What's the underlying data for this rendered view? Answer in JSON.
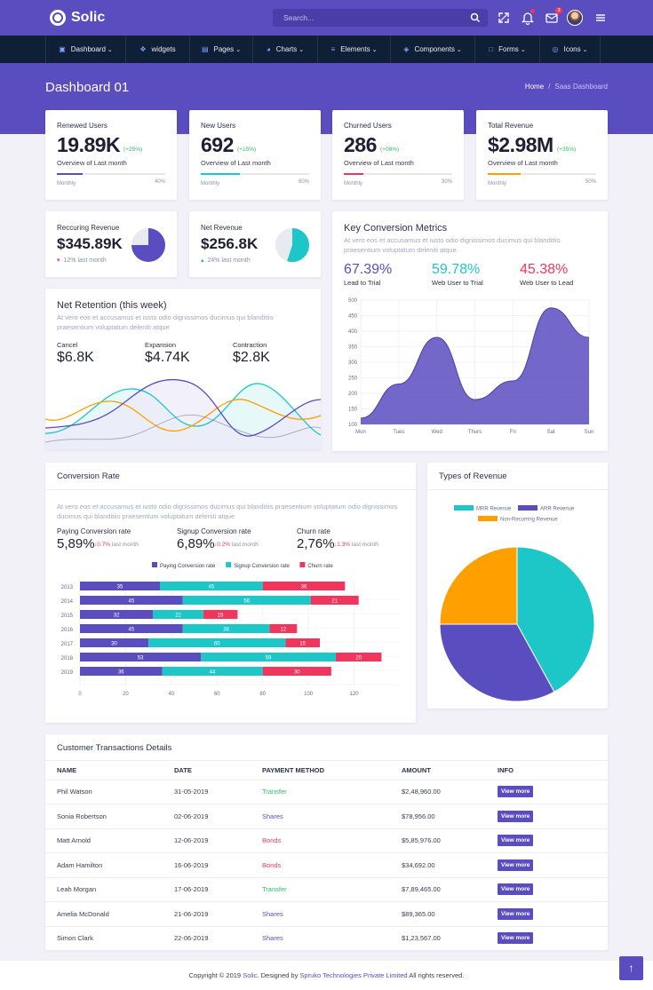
{
  "app": {
    "name": "Solic"
  },
  "search": {
    "placeholder": "Search..."
  },
  "header": {
    "notification_count": "3"
  },
  "nav": [
    {
      "label": "Dashboard",
      "icon": "monitor-icon",
      "has_caret": true
    },
    {
      "label": "widgets",
      "icon": "cube-icon",
      "has_caret": false
    },
    {
      "label": "Pages",
      "icon": "database-icon",
      "has_caret": true
    },
    {
      "label": "Charts",
      "icon": "pie-chart-icon",
      "has_caret": true
    },
    {
      "label": "Elements",
      "icon": "layers-icon",
      "has_caret": true
    },
    {
      "label": "Components",
      "icon": "package-icon",
      "has_caret": true
    },
    {
      "label": "Forms",
      "icon": "file-icon",
      "has_caret": true
    },
    {
      "label": "Icons",
      "icon": "target-icon",
      "has_caret": true
    }
  ],
  "page": {
    "title": "Dashboard 01",
    "breadcrumb_home": "Home",
    "breadcrumb_current": "Saas Dashboard"
  },
  "stats": [
    {
      "label": "Renewed Users",
      "value": "19.89K",
      "change": "(+25%)",
      "sub": "Overview of Last month",
      "period": "Monthly",
      "progress_label": "40%",
      "progress": 0.4,
      "color": "#5a4dbf"
    },
    {
      "label": "New Users",
      "value": "692",
      "change": "(+15%)",
      "sub": "Overview of Last month",
      "period": "Monthly",
      "progress_label": "60%",
      "progress": 0.6,
      "color": "#1ec7c7"
    },
    {
      "label": "Churned Users",
      "value": "286",
      "change": "(+08%)",
      "sub": "Overview of Last month",
      "period": "Monthly",
      "progress_label": "30%",
      "progress": 0.3,
      "color": "#f0365d"
    },
    {
      "label": "Total Revenue",
      "value": "$2.98M",
      "change": "(+35%)",
      "sub": "Overview of Last month",
      "period": "Monthly",
      "progress_label": "50%",
      "progress": 0.5,
      "color": "#ff9f00"
    }
  ],
  "mini": [
    {
      "label": "Reccuring Revenue",
      "value": "$345.89K",
      "sub": "12% last month",
      "trend": "down",
      "slice": 0.75,
      "color": "#5a4dbf"
    },
    {
      "label": "Net Revenue",
      "value": "$256.8K",
      "sub": "24% last month",
      "trend": "up",
      "slice": 0.55,
      "color": "#1ec7c7"
    }
  ],
  "key_metrics": {
    "title": "Key Conversion Metrics",
    "desc": "At vero eos et accusamus et iusto odio dignissimos ducimus qui blanditiis praesentium voluptatum deleniti atque",
    "metrics": [
      {
        "value": "67.39%",
        "label": "Lead to Trial",
        "color": "#5a4dbf"
      },
      {
        "value": "59.78%",
        "label": "Web User to Trial",
        "color": "#1ec7c7"
      },
      {
        "value": "45.38%",
        "label": "Web User to Lead",
        "color": "#f0365d"
      }
    ]
  },
  "retention": {
    "title": "Net Retention (this week)",
    "desc": "At vero eos et accusamus et iusto odio dignissimos ducimus qui blanditiis praesentium voluptatum deleniti atque",
    "items": [
      {
        "label": "Cancel",
        "value": "$6.8K"
      },
      {
        "label": "Expansion",
        "value": "$4.74K"
      },
      {
        "label": "Contraction",
        "value": "$2.8K"
      }
    ]
  },
  "conversion": {
    "title": "Conversion Rate",
    "desc": "At vero eos et accusamus et iusto odio dignissimos ducimus qui blanditiis praesentium voluptatum odio dignissimos ducimus qui blanditiis praesentium voluptatum deleniti atque",
    "rates": [
      {
        "label": "Paying Conversion rate",
        "value": "5,89%",
        "change": "0.7%",
        "suffix": "last month"
      },
      {
        "label": "Signup Conversion rate",
        "value": "6,89%",
        "change": "0.2%",
        "suffix": "last month"
      },
      {
        "label": "Churn rate",
        "value": "2,76%",
        "change": "1.3%",
        "suffix": "last month"
      }
    ]
  },
  "revenue_types": {
    "title": "Types of Revenue"
  },
  "transactions": {
    "title": "Customer Transactions Details",
    "columns": [
      "NAME",
      "DATE",
      "PAYMENT METHOD",
      "AMOUNT",
      "INFO"
    ],
    "button_label": "View more",
    "rows": [
      {
        "name": "Phil Watson",
        "date": "31-05-2019",
        "method": "Transfer",
        "amount": "$2,48,960.00",
        "method_color": "#2dbb6a"
      },
      {
        "name": "Sonia Robertson",
        "date": "02-06-2019",
        "method": "Shares",
        "amount": "$78,956.00",
        "method_color": "#5a4dbf"
      },
      {
        "name": "Matt Arnold",
        "date": "12-06-2019",
        "method": "Bonds",
        "amount": "$5,85,976.00",
        "method_color": "#f0365d"
      },
      {
        "name": "Adam Hamilton",
        "date": "16-06-2019",
        "method": "Bonds",
        "amount": "$34,692.00",
        "method_color": "#f0365d"
      },
      {
        "name": "Leah Morgan",
        "date": "17-06-2019",
        "method": "Transfer",
        "amount": "$7,89,465.00",
        "method_color": "#2dbb6a"
      },
      {
        "name": "Amelia McDonald",
        "date": "21-06-2019",
        "method": "Shares",
        "amount": "$89,365.00",
        "method_color": "#5a4dbf"
      },
      {
        "name": "Simon Clark",
        "date": "22-06-2019",
        "method": "Shares",
        "amount": "$1,23,567.00",
        "method_color": "#5a4dbf"
      }
    ]
  },
  "footer": {
    "prefix": "Copyright © 2019 ",
    "brand": "Solic",
    "middle": ". Designed by ",
    "company": "Spruko Technologies Private Limited",
    "suffix": " All rights reserved."
  },
  "chart_data": [
    {
      "type": "area",
      "categories": [
        "Mon",
        "Tues",
        "Wed",
        "Thurs",
        "Fri",
        "Sat",
        "Sun"
      ],
      "values": [
        120,
        230,
        380,
        180,
        240,
        475,
        380
      ],
      "ylim": [
        100,
        500
      ],
      "yticks": [
        100,
        150,
        200,
        250,
        300,
        350,
        400,
        450,
        500
      ],
      "grid": true,
      "color": "#5a4dbf"
    },
    {
      "type": "bar",
      "stacked": true,
      "orientation": "horizontal",
      "categories": [
        "2013",
        "2014",
        "2015",
        "2016",
        "2017",
        "2018",
        "2019"
      ],
      "series": [
        {
          "name": "Paying Conversion rate",
          "values": [
            35,
            45,
            32,
            45,
            30,
            53,
            36
          ],
          "color": "#5a4dbf"
        },
        {
          "name": "Signup Conversion rate",
          "values": [
            45,
            56,
            22,
            38,
            60,
            59,
            44
          ],
          "color": "#1ec7c7"
        },
        {
          "name": "Churn rate",
          "values": [
            36,
            21,
            15,
            12,
            15,
            20,
            30
          ],
          "color": "#f0365d"
        }
      ],
      "xlim": [
        0,
        140
      ],
      "xticks": [
        0,
        20,
        40,
        60,
        80,
        100,
        120
      ],
      "legend": "top"
    },
    {
      "type": "pie",
      "labels": [
        "MRR Revenue",
        "ARR Revenue",
        "Non-Recurring Revenue"
      ],
      "values": [
        42,
        33,
        25
      ],
      "colors": [
        "#1ec7c7",
        "#5a4dbf",
        "#ff9f00"
      ],
      "legend": "top"
    }
  ]
}
